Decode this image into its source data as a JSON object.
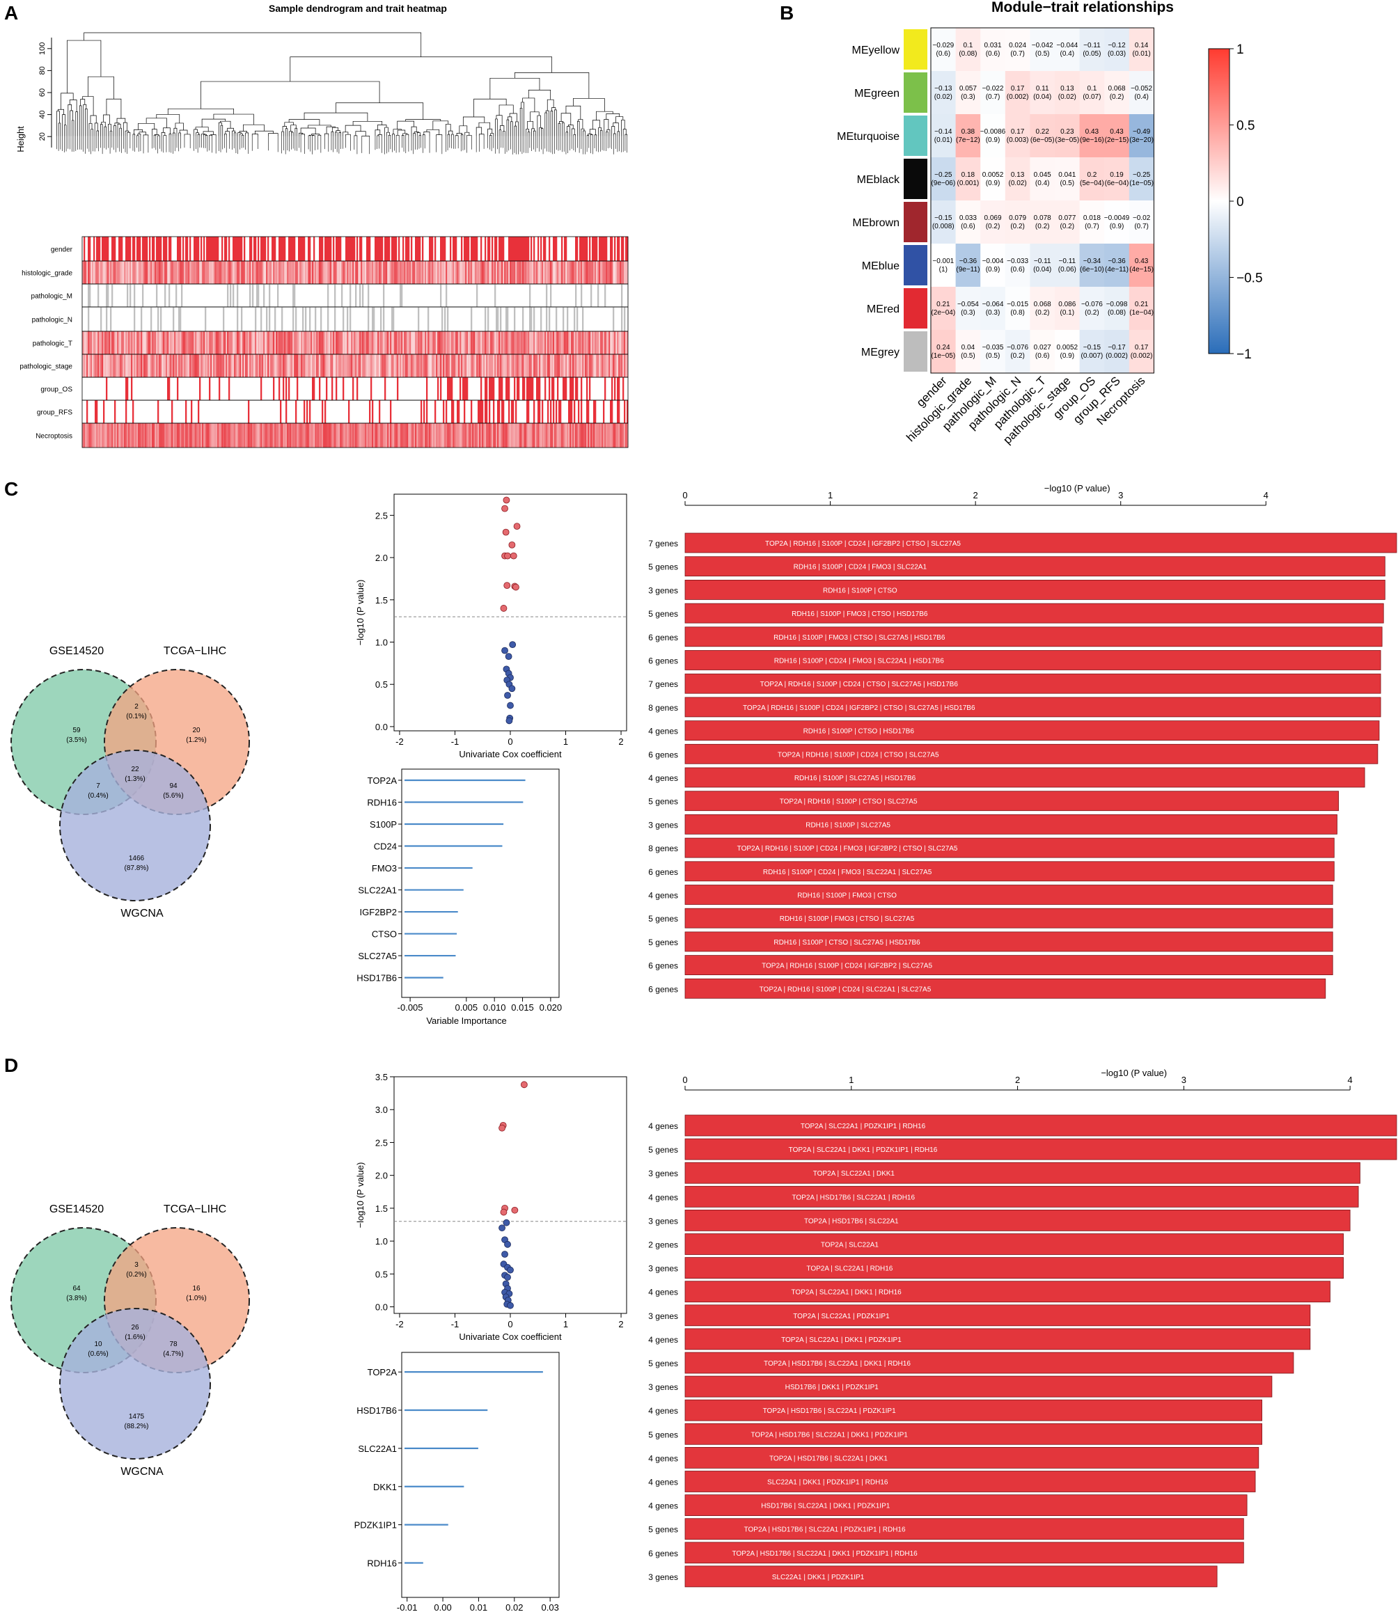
{
  "panel_labels": {
    "A": "A",
    "B": "B",
    "C": "C",
    "D": "D"
  },
  "colors": {
    "red": "#e8313a",
    "blue": "#3653a6",
    "grey": "#c0c0c0",
    "line_blue": "#4a8ac9",
    "bar_red": "#e3363c"
  },
  "chart_data": [
    {
      "type": "heatmap",
      "id": "A",
      "title": "Sample dendrogram and trait heatmap",
      "ylabel": "Height",
      "yticks": [
        "20",
        "40",
        "60",
        "80",
        "100"
      ],
      "ylim": [
        10,
        110
      ],
      "tracks": [
        "gender",
        "histologic_grade",
        "pathologic_M",
        "pathologic_N",
        "pathologic_T",
        "pathologic_stage",
        "group_OS",
        "group_RFS",
        "Necroptosis"
      ]
    },
    {
      "type": "heatmap",
      "id": "B",
      "title": "Module−trait relationships",
      "modules": [
        "MEyellow",
        "MEgreen",
        "MEturquoise",
        "MEblack",
        "MEbrown",
        "MEblue",
        "MEred",
        "MEgrey"
      ],
      "module_colors": [
        "#f2ea1d",
        "#7cc04a",
        "#62c6bf",
        "#0a0a0a",
        "#a0262d",
        "#3052a5",
        "#e22a32",
        "#bdbdbd"
      ],
      "traits": [
        "gender",
        "histologic_grade",
        "pathologic_M",
        "pathologic_N",
        "pathologic_T",
        "pathologic_stage",
        "group_OS",
        "group_RFS",
        "Necroptosis"
      ],
      "values": [
        [
          -0.029,
          0.1,
          0.031,
          0.024,
          -0.042,
          -0.044,
          -0.11,
          -0.12,
          0.14
        ],
        [
          -0.13,
          0.057,
          -0.022,
          0.17,
          0.11,
          0.13,
          0.1,
          0.068,
          -0.052
        ],
        [
          -0.14,
          0.38,
          -0.0086,
          0.17,
          0.22,
          0.23,
          0.43,
          0.43,
          -0.49
        ],
        [
          -0.25,
          0.18,
          0.0052,
          0.13,
          0.045,
          0.041,
          0.2,
          0.19,
          -0.25
        ],
        [
          -0.15,
          0.033,
          0.069,
          0.079,
          0.078,
          0.077,
          0.018,
          -0.0049,
          -0.02
        ],
        [
          -0.001,
          -0.36,
          -0.004,
          -0.033,
          -0.11,
          -0.11,
          -0.34,
          -0.36,
          0.43
        ],
        [
          0.21,
          -0.054,
          -0.064,
          -0.015,
          0.068,
          0.086,
          -0.076,
          -0.098,
          0.21
        ],
        [
          0.24,
          0.04,
          -0.035,
          -0.076,
          0.027,
          0.0052,
          -0.15,
          -0.17,
          0.17
        ]
      ],
      "value_labels": [
        [
          "−0.029",
          "0.1",
          "0.031",
          "0.024",
          "−0.042",
          "−0.044",
          "−0.11",
          "−0.12",
          "0.14"
        ],
        [
          "−0.13",
          "0.057",
          "−0.022",
          "0.17",
          "0.11",
          "0.13",
          "0.1",
          "0.068",
          "−0.052"
        ],
        [
          "−0.14",
          "0.38",
          "−0.0086",
          "0.17",
          "0.22",
          "0.23",
          "0.43",
          "0.43",
          "−0.49"
        ],
        [
          "−0.25",
          "0.18",
          "0.0052",
          "0.13",
          "0.045",
          "0.041",
          "0.2",
          "0.19",
          "−0.25"
        ],
        [
          "−0.15",
          "0.033",
          "0.069",
          "0.079",
          "0.078",
          "0.077",
          "0.018",
          "−0.0049",
          "−0.02"
        ],
        [
          "−0.001",
          "−0.36",
          "−0.004",
          "−0.033",
          "−0.11",
          "−0.11",
          "−0.34",
          "−0.36",
          "0.43"
        ],
        [
          "0.21",
          "−0.054",
          "−0.064",
          "−0.015",
          "0.068",
          "0.086",
          "−0.076",
          "−0.098",
          "0.21"
        ],
        [
          "0.24",
          "0.04",
          "−0.035",
          "−0.076",
          "0.027",
          "0.0052",
          "−0.15",
          "−0.17",
          "0.17"
        ]
      ],
      "pvalues": [
        [
          "(0.6)",
          "(0.08)",
          "(0.6)",
          "(0.7)",
          "(0.5)",
          "(0.4)",
          "(0.05)",
          "(0.03)",
          "(0.01)"
        ],
        [
          "(0.02)",
          "(0.3)",
          "(0.7)",
          "(0.002)",
          "(0.04)",
          "(0.02)",
          "(0.07)",
          "(0.2)",
          "(0.4)"
        ],
        [
          "(0.01)",
          "(7e−12)",
          "(0.9)",
          "(0.003)",
          "(6e−05)",
          "(3e−05)",
          "(9e−16)",
          "(2e−15)",
          "(3e−20)"
        ],
        [
          "(9e−06)",
          "(0.001)",
          "(0.9)",
          "(0.02)",
          "(0.4)",
          "(0.5)",
          "(5e−04)",
          "(6e−04)",
          "(1e−05)"
        ],
        [
          "(0.008)",
          "(0.6)",
          "(0.2)",
          "(0.2)",
          "(0.2)",
          "(0.2)",
          "(0.7)",
          "(0.9)",
          "(0.7)"
        ],
        [
          "(1)",
          "(9e−11)",
          "(0.9)",
          "(0.6)",
          "(0.04)",
          "(0.06)",
          "(6e−10)",
          "(4e−11)",
          "(4e−15)"
        ],
        [
          "(2e−04)",
          "(0.3)",
          "(0.3)",
          "(0.8)",
          "(0.2)",
          "(0.1)",
          "(0.2)",
          "(0.08)",
          "(1e−04)"
        ],
        [
          "(1e−05)",
          "(0.5)",
          "(0.5)",
          "(0.2)",
          "(0.6)",
          "(0.9)",
          "(0.007)",
          "(0.002)",
          "(0.002)"
        ]
      ],
      "legend_ticks": [
        "1",
        "0.5",
        "0",
        "−0.5",
        "−1"
      ],
      "range": [
        -1,
        1
      ]
    },
    {
      "type": "venn",
      "id": "C-venn",
      "sets": [
        "GSE14520",
        "TCGA−LIHC",
        "WGCNA"
      ],
      "regions": {
        "A_only": [
          "59",
          "(3.5%)"
        ],
        "B_only": [
          "20",
          "(1.2%)"
        ],
        "C_only": [
          "1466",
          "(87.8%)"
        ],
        "AB": [
          "2",
          "(0.1%)"
        ],
        "AC": [
          "7",
          "(0.4%)"
        ],
        "BC": [
          "94",
          "(5.6%)"
        ],
        "ABC": [
          "22",
          "(1.3%)"
        ]
      }
    },
    {
      "type": "scatter",
      "id": "C-volcano",
      "xlabel": "Univariate Cox coefficient",
      "ylabel": "−log10 (P value)",
      "xlim": [
        -2.1,
        2.1
      ],
      "ylim": [
        -0.05,
        2.75
      ],
      "xticks": [
        -2,
        -1,
        0,
        1,
        2
      ],
      "yticks": [
        0.0,
        0.5,
        1.0,
        1.5,
        2.0,
        2.5
      ],
      "threshold": 1.3,
      "points_red": [
        [
          -0.07,
          2.68
        ],
        [
          0.12,
          2.37
        ],
        [
          -0.1,
          2.58
        ],
        [
          -0.08,
          2.3
        ],
        [
          0.03,
          2.15
        ],
        [
          -0.1,
          2.02
        ],
        [
          -0.05,
          2.02
        ],
        [
          0.06,
          2.02
        ],
        [
          0.08,
          1.66
        ],
        [
          0.1,
          1.65
        ],
        [
          -0.06,
          1.67
        ],
        [
          -0.12,
          1.4
        ]
      ],
      "points_blue": [
        [
          0.04,
          0.97
        ],
        [
          -0.1,
          0.9
        ],
        [
          -0.03,
          0.83
        ],
        [
          -0.07,
          0.68
        ],
        [
          -0.03,
          0.63
        ],
        [
          0.0,
          0.58
        ],
        [
          -0.06,
          0.55
        ],
        [
          -0.02,
          0.5
        ],
        [
          0.03,
          0.45
        ],
        [
          -0.05,
          0.37
        ],
        [
          0.0,
          0.25
        ],
        [
          -0.01,
          0.1
        ],
        [
          -0.02,
          0.07
        ]
      ]
    },
    {
      "type": "bar",
      "id": "C-importance",
      "xlabel": "Variable Importance",
      "categories": [
        "TOP2A",
        "RDH16",
        "S100P",
        "CD24",
        "FMO3",
        "SLC22A1",
        "IGF2BP2",
        "CTSO",
        "SLC27A5",
        "HSD17B6"
      ],
      "values": [
        0.0155,
        0.0151,
        0.0116,
        0.0114,
        0.0061,
        0.0045,
        0.0035,
        0.0033,
        0.0031,
        0.0009
      ],
      "xlim": [
        -0.0065,
        0.0215
      ],
      "xticks": [
        "-0.005",
        "0.005",
        "0.010",
        "0.015",
        "0.020"
      ],
      "xtick_values": [
        -0.005,
        0.005,
        0.01,
        0.015,
        0.02
      ]
    },
    {
      "type": "bar",
      "id": "C-combos",
      "xlabel": "−log10 (P value)",
      "xticks": [
        0,
        1,
        2,
        3,
        4
      ],
      "xlim": [
        0,
        4.9
      ],
      "categories": [
        "7 genes",
        "5 genes",
        "3 genes",
        "5 genes",
        "6 genes",
        "6 genes",
        "7 genes",
        "8 genes",
        "4 genes",
        "6 genes",
        "4 genes",
        "5 genes",
        "3 genes",
        "8 genes",
        "6 genes",
        "4 genes",
        "5 genes",
        "5 genes",
        "6 genes",
        "6 genes"
      ],
      "labels": [
        "TOP2A | RDH16 | S100P | CD24 | IGF2BP2 | CTSO | SLC27A5",
        "RDH16 | S100P | CD24 | FMO3 | SLC22A1",
        "RDH16 | S100P | CTSO",
        "RDH16 | S100P | FMO3 | CTSO | HSD17B6",
        "RDH16 | S100P | FMO3 | CTSO | SLC27A5 | HSD17B6",
        "RDH16 | S100P | CD24 | FMO3 | SLC22A1 | HSD17B6",
        "TOP2A | RDH16 | S100P | CD24 | CTSO | SLC27A5 | HSD17B6",
        "TOP2A | RDH16 | S100P | CD24 | IGF2BP2 | CTSO | SLC27A5 | HSD17B6",
        "RDH16 | S100P | CTSO | HSD17B6",
        "TOP2A | RDH16 | S100P | CD24 | CTSO | SLC27A5",
        "RDH16 | S100P | SLC27A5 | HSD17B6",
        "TOP2A | RDH16 | S100P | CTSO | SLC27A5",
        "RDH16 | S100P | SLC27A5",
        "TOP2A | RDH16 | S100P | CD24 | FMO3 | IGF2BP2 | CTSO | SLC27A5",
        "RDH16 | S100P | CD24 | FMO3 | SLC22A1 | SLC27A5",
        "RDH16 | S100P | FMO3 | CTSO",
        "RDH16 | S100P | FMO3 | CTSO | SLC27A5",
        "RDH16 | S100P | CTSO | SLC27A5 | HSD17B6",
        "TOP2A | RDH16 | S100P | CD24 | IGF2BP2 | SLC27A5",
        "TOP2A | RDH16 | S100P | CD24 | SLC22A1 | SLC27A5"
      ],
      "values": [
        4.9,
        4.82,
        4.82,
        4.81,
        4.8,
        4.79,
        4.79,
        4.79,
        4.78,
        4.77,
        4.68,
        4.5,
        4.49,
        4.47,
        4.47,
        4.46,
        4.46,
        4.46,
        4.46,
        4.41
      ]
    },
    {
      "type": "venn",
      "id": "D-venn",
      "sets": [
        "GSE14520",
        "TCGA−LIHC",
        "WGCNA"
      ],
      "regions": {
        "A_only": [
          "64",
          "(3.8%)"
        ],
        "B_only": [
          "16",
          "(1.0%)"
        ],
        "C_only": [
          "1475",
          "(88.2%)"
        ],
        "AB": [
          "3",
          "(0.2%)"
        ],
        "AC": [
          "10",
          "(0.6%)"
        ],
        "BC": [
          "78",
          "(4.7%)"
        ],
        "ABC": [
          "26",
          "(1.6%)"
        ]
      }
    },
    {
      "type": "scatter",
      "id": "D-volcano",
      "xlabel": "Univariate Cox coefficient",
      "ylabel": "−log10 (P value)",
      "xlim": [
        -2.1,
        2.1
      ],
      "ylim": [
        -0.1,
        3.5
      ],
      "xticks": [
        -2,
        -1,
        0,
        1,
        2
      ],
      "yticks": [
        0.0,
        0.5,
        1.0,
        1.5,
        2.0,
        2.5,
        3.0,
        3.5
      ],
      "threshold": 1.3,
      "points_red": [
        [
          0.25,
          3.38
        ],
        [
          -0.13,
          2.76
        ],
        [
          -0.15,
          2.72
        ],
        [
          -0.1,
          1.5
        ],
        [
          -0.12,
          1.44
        ],
        [
          0.08,
          1.47
        ]
      ],
      "points_blue": [
        [
          -0.07,
          1.28
        ],
        [
          -0.15,
          1.2
        ],
        [
          -0.1,
          1.02
        ],
        [
          -0.05,
          0.95
        ],
        [
          -0.1,
          0.8
        ],
        [
          -0.12,
          0.65
        ],
        [
          -0.05,
          0.6
        ],
        [
          0.0,
          0.56
        ],
        [
          -0.1,
          0.48
        ],
        [
          -0.05,
          0.45
        ],
        [
          -0.08,
          0.35
        ],
        [
          -0.05,
          0.28
        ],
        [
          -0.1,
          0.22
        ],
        [
          -0.02,
          0.2
        ],
        [
          -0.08,
          0.15
        ],
        [
          -0.04,
          0.1
        ],
        [
          -0.06,
          0.04
        ],
        [
          0.0,
          0.02
        ]
      ]
    },
    {
      "type": "bar",
      "id": "D-importance",
      "xlabel": "Variable Importance",
      "categories": [
        "TOP2A",
        "HSD17B6",
        "SLC22A1",
        "DKK1",
        "PDZK1IP1",
        "RDH16"
      ],
      "values": [
        0.028,
        0.0125,
        0.0099,
        0.0059,
        0.0015,
        -0.0055
      ],
      "xlim": [
        -0.0115,
        0.0325
      ],
      "xticks": [
        "-0.01",
        "0.00",
        "0.01",
        "0.02",
        "0.03"
      ],
      "xtick_values": [
        -0.01,
        0.0,
        0.01,
        0.02,
        0.03
      ]
    },
    {
      "type": "bar",
      "id": "D-combos",
      "xlabel": "−log10 (P value)",
      "xticks": [
        0,
        1,
        2,
        3,
        4
      ],
      "xlim": [
        0,
        4.28
      ],
      "categories": [
        "4 genes",
        "5 genes",
        "3 genes",
        "4 genes",
        "3 genes",
        "2 genes",
        "3 genes",
        "4 genes",
        "3 genes",
        "4 genes",
        "5 genes",
        "3 genes",
        "4 genes",
        "5 genes",
        "4 genes",
        "4 genes",
        "4 genes",
        "5 genes",
        "6 genes",
        "3 genes"
      ],
      "labels": [
        "TOP2A | SLC22A1 | PDZK1IP1 | RDH16",
        "TOP2A | SLC22A1 | DKK1 | PDZK1IP1 | RDH16",
        "TOP2A | SLC22A1 | DKK1",
        "TOP2A | HSD17B6 | SLC22A1 | RDH16",
        "TOP2A | HSD17B6 | SLC22A1",
        "TOP2A | SLC22A1",
        "TOP2A | SLC22A1 | RDH16",
        "TOP2A | SLC22A1 | DKK1 | RDH16",
        "TOP2A | SLC22A1 | PDZK1IP1",
        "TOP2A | SLC22A1 | DKK1 | PDZK1IP1",
        "TOP2A | HSD17B6 | SLC22A1 | DKK1 | RDH16",
        "HSD17B6 | DKK1 | PDZK1IP1",
        "TOP2A | HSD17B6 | SLC22A1 | PDZK1IP1",
        "TOP2A | HSD17B6 | SLC22A1 | DKK1 | PDZK1IP1",
        "TOP2A | HSD17B6 | SLC22A1 | DKK1",
        "SLC22A1 | DKK1 | PDZK1IP1 | RDH16",
        "HSD17B6 | SLC22A1 | DKK1 | PDZK1IP1",
        "TOP2A | HSD17B6 | SLC22A1 | PDZK1IP1 | RDH16",
        "TOP2A | HSD17B6 | SLC22A1 | DKK1 | PDZK1IP1 | RDH16",
        "SLC22A1 | DKK1 | PDZK1IP1"
      ],
      "values": [
        4.28,
        4.28,
        4.06,
        4.05,
        4.0,
        3.96,
        3.96,
        3.88,
        3.76,
        3.76,
        3.66,
        3.53,
        3.47,
        3.47,
        3.45,
        3.43,
        3.38,
        3.36,
        3.36,
        3.2
      ]
    }
  ]
}
